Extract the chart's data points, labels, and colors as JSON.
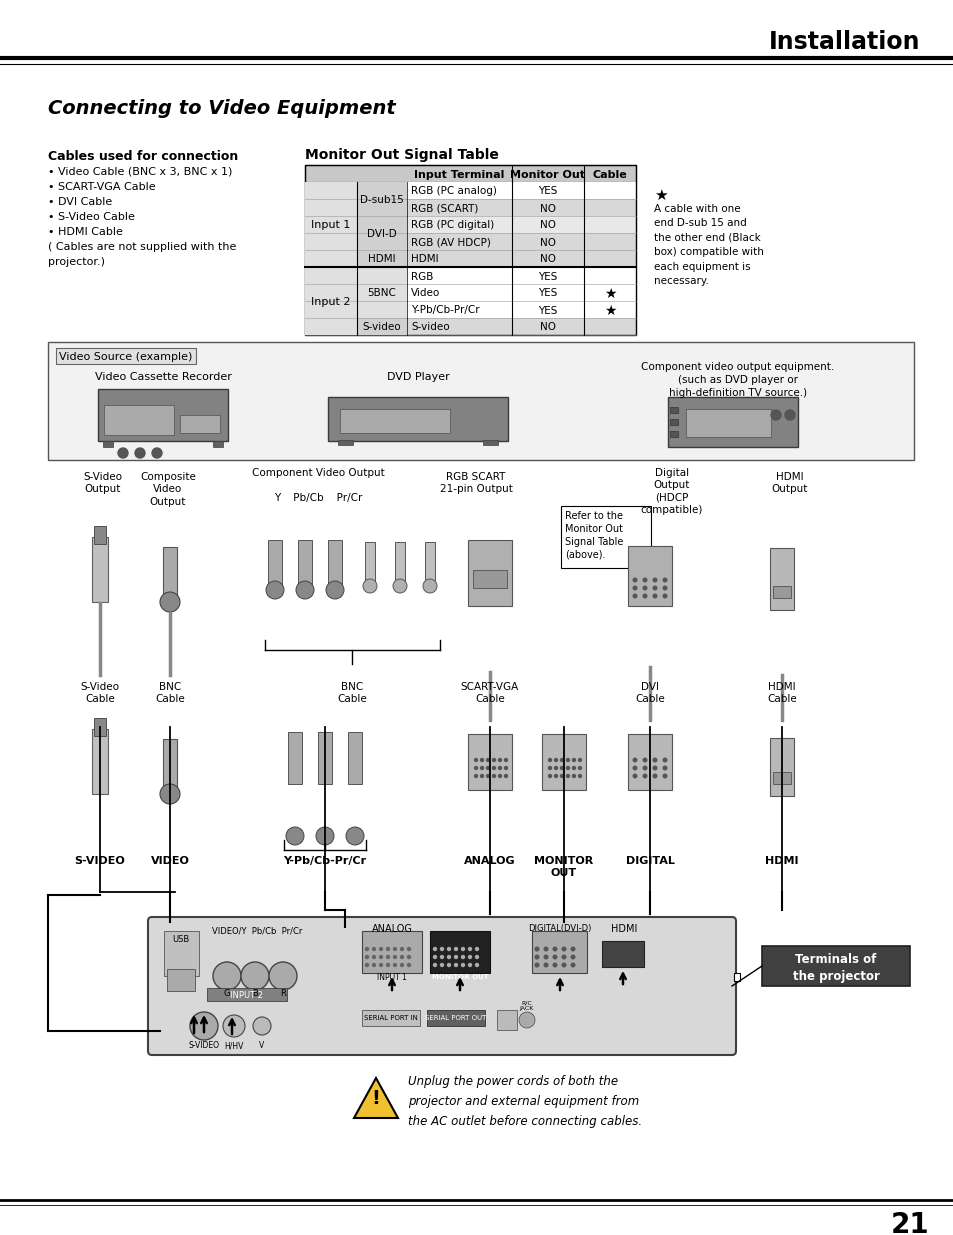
{
  "title": "Installation",
  "section_title": "Connecting to Video Equipment",
  "cables_header": "Cables used for connection",
  "cables_list": [
    "• Video Cable (BNC x 3, BNC x 1)",
    "• SCART-VGA Cable",
    "• DVI Cable",
    "• S-Video Cable",
    "• HDMI Cable",
    "( Cables are not supplied with the",
    "projector.)"
  ],
  "table_header": "Monitor Out Signal Table",
  "table_rows": [
    [
      "D-sub15",
      "RGB (PC analog)",
      "YES",
      ""
    ],
    [
      "",
      "RGB (SCART)",
      "NO",
      ""
    ],
    [
      "DVI-D",
      "RGB (PC digital)",
      "NO",
      ""
    ],
    [
      "",
      "RGB (AV HDCP)",
      "NO",
      ""
    ],
    [
      "HDMI",
      "HDMI",
      "NO",
      ""
    ],
    [
      "5BNC",
      "RGB",
      "YES",
      ""
    ],
    [
      "",
      "Video",
      "YES",
      "*"
    ],
    [
      "",
      "Y-Pb/Cb-Pr/Cr",
      "YES",
      "*"
    ],
    [
      "S-video",
      "S-video",
      "NO",
      ""
    ]
  ],
  "asterisk_note": "A cable with one\nend D-sub 15 and\nthe other end (Black\nbox) compatible with\neach equipment is\nnecessary.",
  "video_source_box_label": "Video Source (example)",
  "vcr_label": "Video Cassette Recorder",
  "dvd_label": "DVD Player",
  "component_label": "Component video output equipment.\n(such as DVD player or\nhigh-definition TV source.)",
  "signal_note": "Refer to the\nMonitor Out\nSignal Table\n(above).",
  "terminals_label": "Terminals of\nthe projector",
  "warning_text": "Unplug the power cords of both the\nprojector and external equipment from\nthe AC outlet before connecting cables.",
  "page_number": "21"
}
